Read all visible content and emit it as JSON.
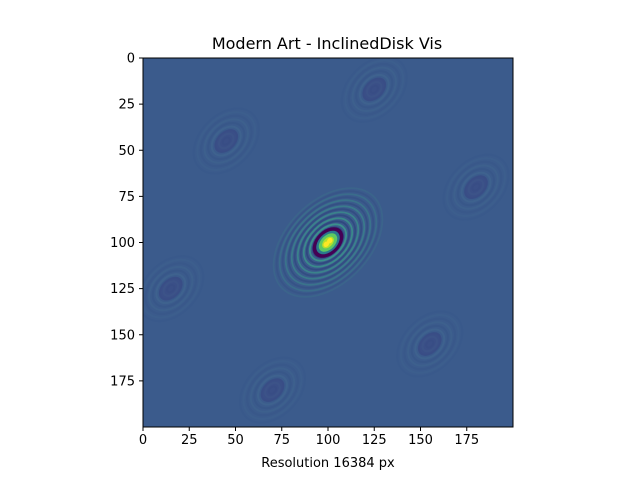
{
  "chart_data": {
    "type": "heatmap",
    "title": "Modern Art - InclinedDisk Vis",
    "xlabel": "Resolution 16384 px",
    "ylabel": "",
    "xlim": [
      0,
      200
    ],
    "ylim": [
      200,
      0
    ],
    "x_ticks": [
      0,
      25,
      50,
      75,
      100,
      125,
      150,
      175
    ],
    "y_ticks": [
      0,
      25,
      50,
      75,
      100,
      125,
      150,
      175
    ],
    "colormap": "viridis",
    "grid": false,
    "legend": "none",
    "features": [
      {
        "x": 100,
        "y": 100,
        "kind": "bright inclined disk"
      },
      {
        "x": 45,
        "y": 45,
        "kind": "faint ring"
      },
      {
        "x": 125,
        "y": 17,
        "kind": "faint ring"
      },
      {
        "x": 180,
        "y": 70,
        "kind": "faint ring"
      },
      {
        "x": 15,
        "y": 125,
        "kind": "faint ring"
      },
      {
        "x": 155,
        "y": 155,
        "kind": "faint ring"
      },
      {
        "x": 70,
        "y": 180,
        "kind": "faint ring"
      }
    ]
  },
  "colors": {
    "background_field": "#3b5b8c",
    "dark": "#440154",
    "mid": "#21918c",
    "bright": "#fde725"
  }
}
